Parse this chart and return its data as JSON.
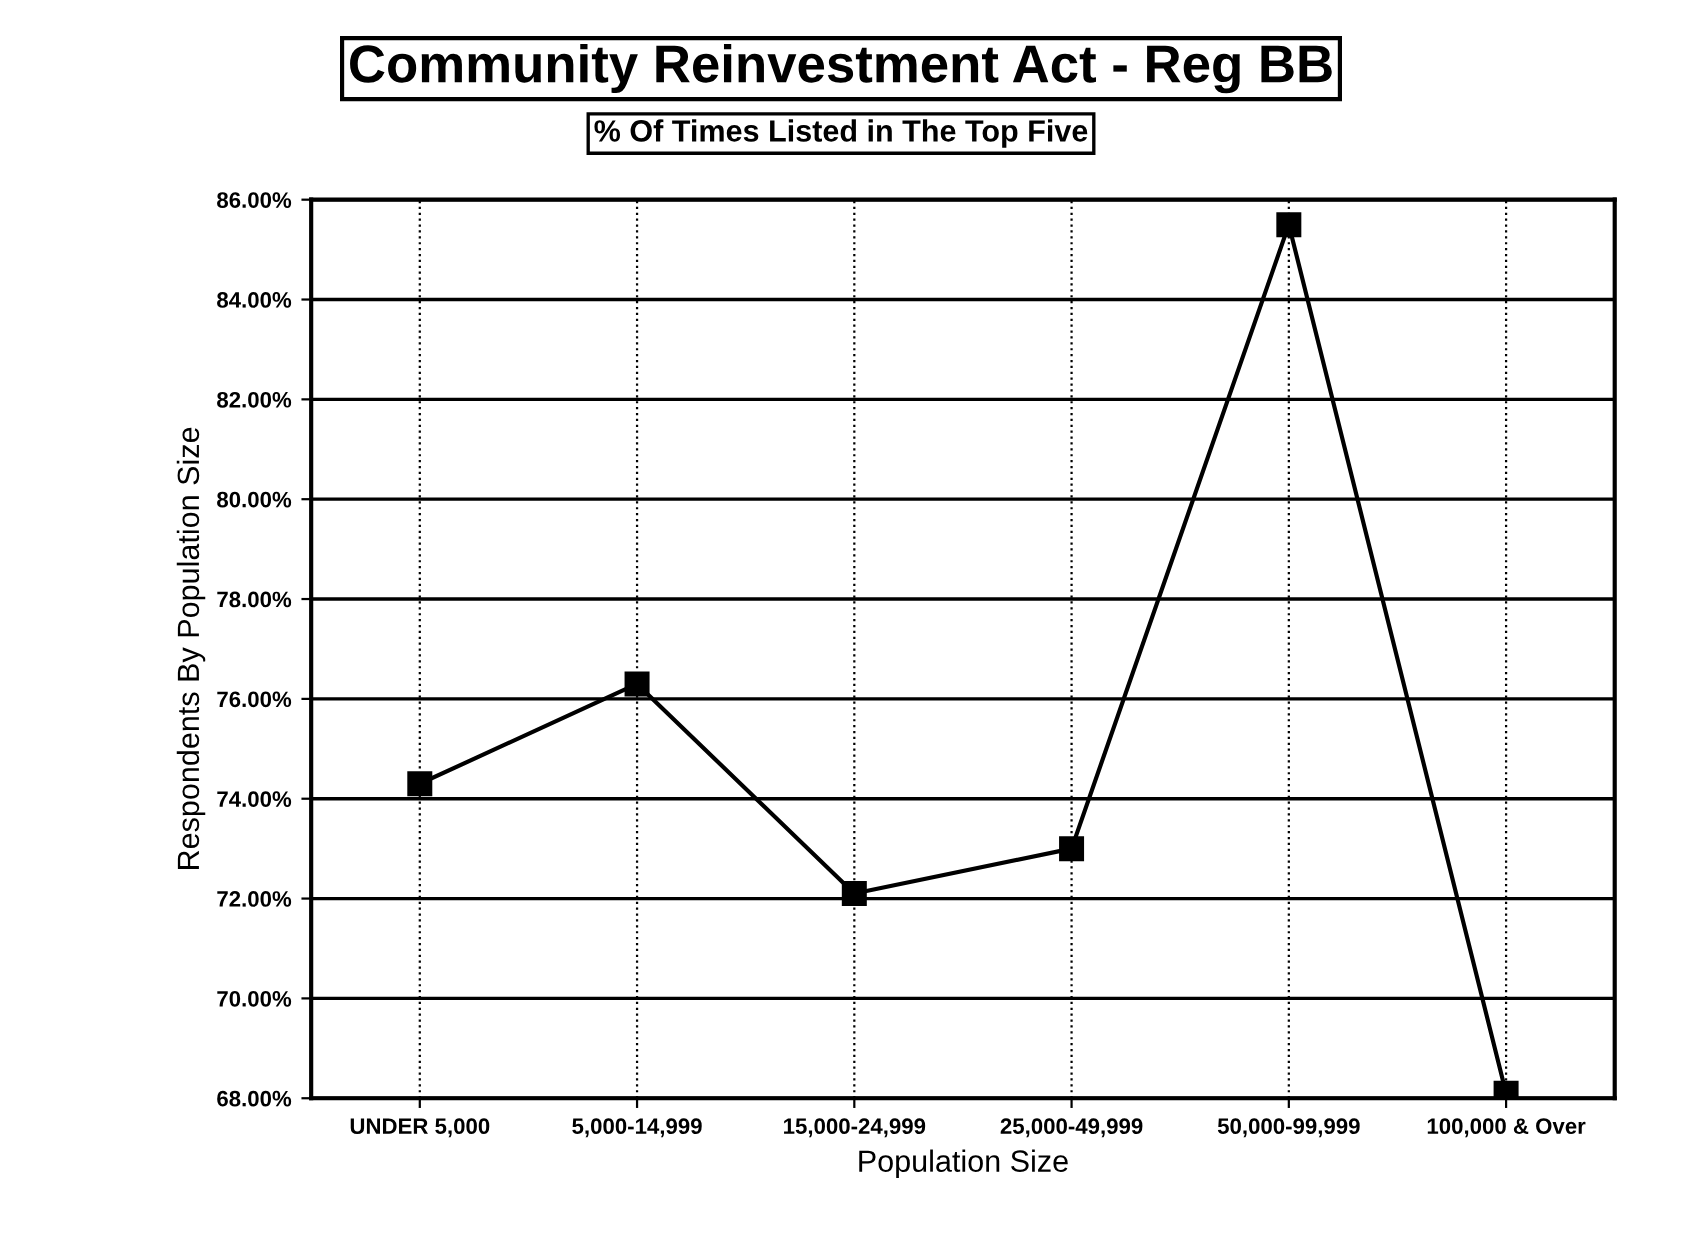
{
  "chart_data": {
    "type": "line",
    "title": "Community Reinvestment Act - Reg BB",
    "subtitle": "% Of Times Listed in The Top Five",
    "xlabel": "Population Size",
    "ylabel": "Respondents By Population Size",
    "categories": [
      "UNDER 5,000",
      "5,000-14,999",
      "15,000-24,999",
      "25,000-49,999",
      "50,000-99,999",
      "100,000 & Over"
    ],
    "series": [
      {
        "color": "#000000",
        "values": [
          74.3,
          76.3,
          72.1,
          73.0,
          85.5,
          68.1
        ]
      }
    ],
    "ylim": [
      68,
      86
    ],
    "yticks": [
      {
        "value": 68,
        "label": "68.00%"
      },
      {
        "value": 70,
        "label": "70.00%"
      },
      {
        "value": 72,
        "label": "72.00%"
      },
      {
        "value": 74,
        "label": "74.00%"
      },
      {
        "value": 76,
        "label": "76.00%"
      },
      {
        "value": 78,
        "label": "78.00%"
      },
      {
        "value": 80,
        "label": "80.00%"
      },
      {
        "value": 82,
        "label": "82.00%"
      },
      {
        "value": 84,
        "label": "84.00%"
      },
      {
        "value": 86,
        "label": "86.00%"
      }
    ],
    "grid": true,
    "marker": "square",
    "line_style": "solid"
  }
}
